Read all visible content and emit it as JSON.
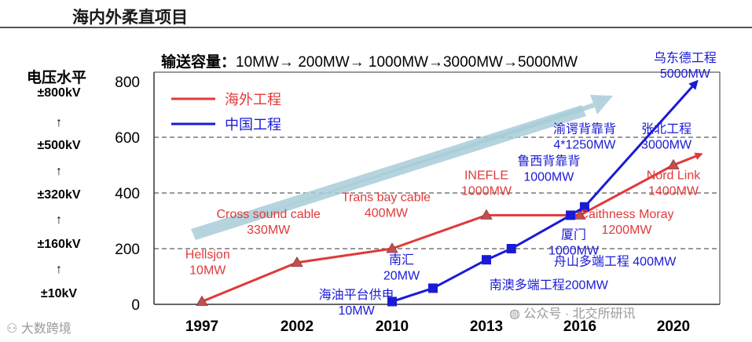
{
  "header": {
    "title": "海内外柔直项目"
  },
  "voltage": {
    "title": "电压水平",
    "levels": [
      "±800kV",
      "±500kV",
      "±320kV",
      "±160kV",
      "±10kV"
    ],
    "arrow": "↑"
  },
  "capacity": {
    "label": "输送容量：",
    "sequence": "10MW→ 200MW→ 1000MW→3000MW→5000MW"
  },
  "colors": {
    "overseas": "#e03a3a",
    "china": "#1a1ad6",
    "trend_arrow": "#a8cdd8"
  },
  "chart_data": {
    "type": "line",
    "title": "",
    "xlabel": "",
    "ylabel": "",
    "ylim": [
      0,
      800
    ],
    "yticks": [
      0,
      200,
      400,
      600,
      800
    ],
    "xticks": [
      1997,
      2002,
      2010,
      2013,
      2016,
      2020
    ],
    "grid": "dashed at 200, 400, 600",
    "legend": [
      "海外工程",
      "中国工程"
    ],
    "series": [
      {
        "name": "海外工程",
        "color": "#e03a3a",
        "points": [
          {
            "x": 1997,
            "y": 10,
            "marker": true
          },
          {
            "x": 2002,
            "y": 150,
            "marker": true
          },
          {
            "x": 2010,
            "y": 200,
            "marker": true
          },
          {
            "x": 2013,
            "y": 320,
            "marker": true
          },
          {
            "x": 2016,
            "y": 320,
            "marker": true
          },
          {
            "x": 2020,
            "y": 500,
            "marker": true
          },
          {
            "x": 2021.2,
            "y": 540,
            "marker": false
          }
        ]
      },
      {
        "name": "中国工程",
        "color": "#1a1ad6",
        "points": [
          {
            "x": 2010,
            "y": 10,
            "marker": true
          },
          {
            "x": 2011.3,
            "y": 58,
            "marker": true
          },
          {
            "x": 2013,
            "y": 160,
            "marker": true
          },
          {
            "x": 2013.8,
            "y": 200,
            "marker": true
          },
          {
            "x": 2015.7,
            "y": 320,
            "marker": true
          },
          {
            "x": 2016.2,
            "y": 350,
            "marker": true
          },
          {
            "x": 2021.0,
            "y": 800,
            "marker": false
          }
        ]
      }
    ],
    "annotations": [
      {
        "lines": [
          "Hellsjon",
          "10MW"
        ],
        "series": "海外工程",
        "x": 1997.3,
        "y": 165
      },
      {
        "lines": [
          "Cross sound cable",
          "330MW"
        ],
        "series": "海外工程",
        "x": 2000.5,
        "y": 310
      },
      {
        "lines": [
          "Trans bay cable",
          "400MW"
        ],
        "series": "海外工程",
        "x": 2009.5,
        "y": 370
      },
      {
        "lines": [
          "INEFLE",
          "1000MW"
        ],
        "series": "海外工程",
        "x": 2013.0,
        "y": 450
      },
      {
        "lines": [
          "Caithness Moray",
          "1200MW"
        ],
        "series": "海外工程",
        "x": 2018.0,
        "y": 310
      },
      {
        "lines": [
          "Nord Link",
          "1400MW"
        ],
        "series": "海外工程",
        "x": 2020.0,
        "y": 450
      },
      {
        "lines": [
          "海油平台供电",
          "10MW"
        ],
        "series": "中国工程",
        "x": 2007.0,
        "y": 20
      },
      {
        "lines": [
          "南汇",
          "20MW"
        ],
        "series": "中国工程",
        "x": 2010.3,
        "y": 145
      },
      {
        "lines": [
          "南澳多端工程200MW"
        ],
        "series": "中国工程",
        "x": 2015.0,
        "y": 55
      },
      {
        "lines": [
          "舟山多端工程 400MW"
        ],
        "series": "中国工程",
        "x": 2017.5,
        "y": 140
      },
      {
        "lines": [
          "厦门",
          "1000MW"
        ],
        "series": "中国工程",
        "x": 2015.8,
        "y": 235
      },
      {
        "lines": [
          "鲁西背靠背",
          "1000MW"
        ],
        "series": "中国工程",
        "x": 2015.0,
        "y": 500
      },
      {
        "lines": [
          "渝谔背靠背",
          "4*1250MW"
        ],
        "series": "中国工程",
        "x": 2016.2,
        "y": 615
      },
      {
        "lines": [
          "张北工程",
          "3000MW"
        ],
        "series": "中国工程",
        "x": 2019.7,
        "y": 615
      },
      {
        "lines": [
          "乌东德工程",
          "5000MW"
        ],
        "series": "中国工程",
        "x": 2020.5,
        "y": 870
      }
    ]
  },
  "watermarks": {
    "left": "大数跨境",
    "right": "公众号 · 北交所研讯"
  }
}
